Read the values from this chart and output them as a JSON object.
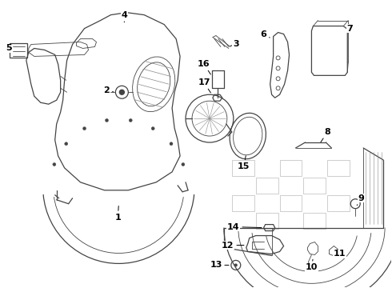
{
  "background_color": "#ffffff",
  "line_color": "#444444",
  "label_color": "#000000",
  "figsize": [
    4.9,
    3.6
  ],
  "dpi": 100
}
